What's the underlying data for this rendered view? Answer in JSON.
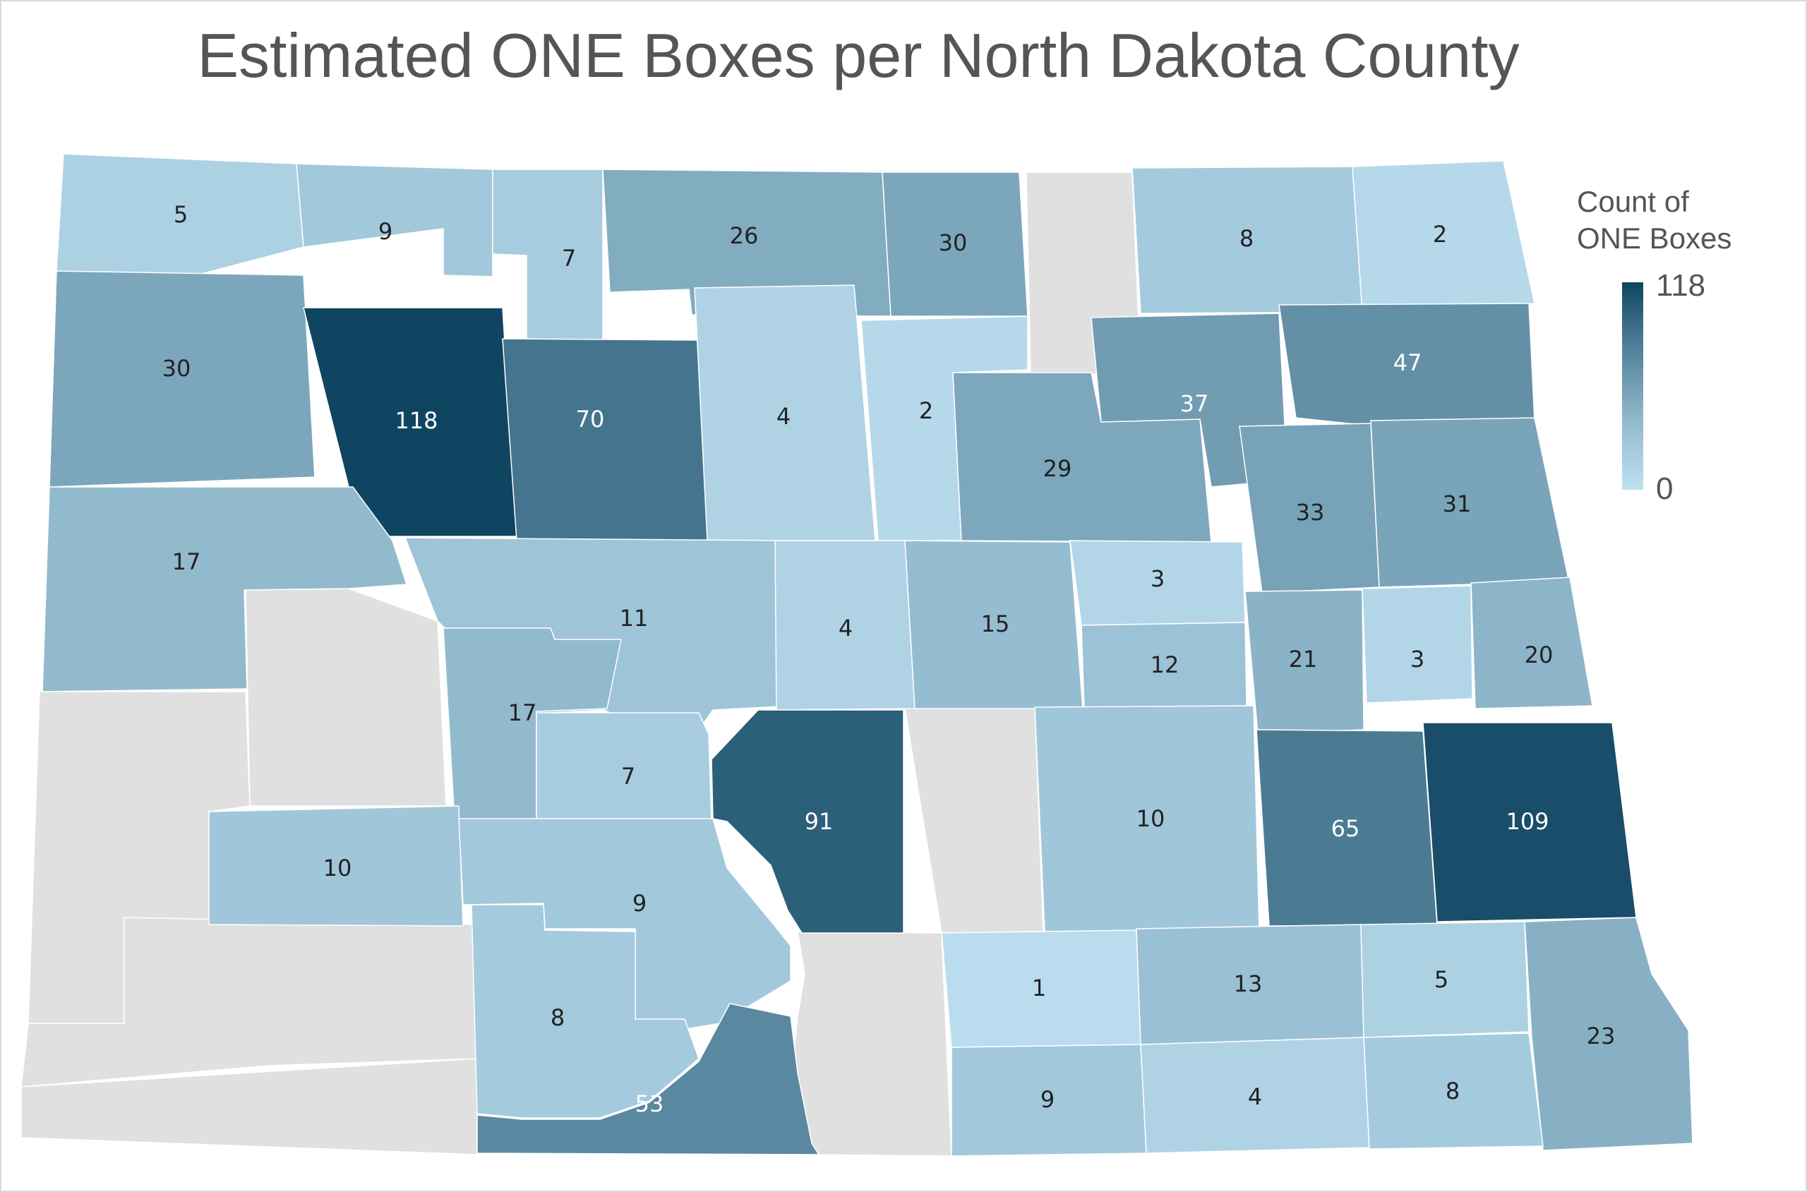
{
  "title": "Estimated ONE Boxes per North Dakota County",
  "legend": {
    "title_line1": "Count of",
    "title_line2": "ONE Boxes",
    "max": "118",
    "min": "0"
  },
  "colors": {
    "low": "#bfe2f3",
    "high": "#0f4561",
    "no_data": "#e0e0e0",
    "label_dark": "#222222",
    "label_light": "#ffffff"
  },
  "chart_data": {
    "type": "choropleth",
    "title": "Estimated ONE Boxes per North Dakota County",
    "scale": {
      "min": 0,
      "max": 118,
      "legend_placement": "right"
    },
    "values": [
      5,
      9,
      7,
      26,
      30,
      8,
      2,
      30,
      118,
      70,
      4,
      2,
      29,
      37,
      47,
      17,
      33,
      31,
      11,
      4,
      15,
      3,
      12,
      21,
      3,
      20,
      17,
      7,
      91,
      10,
      65,
      109,
      10,
      9,
      8,
      1,
      13,
      5,
      53,
      23,
      9,
      4,
      8
    ]
  }
}
